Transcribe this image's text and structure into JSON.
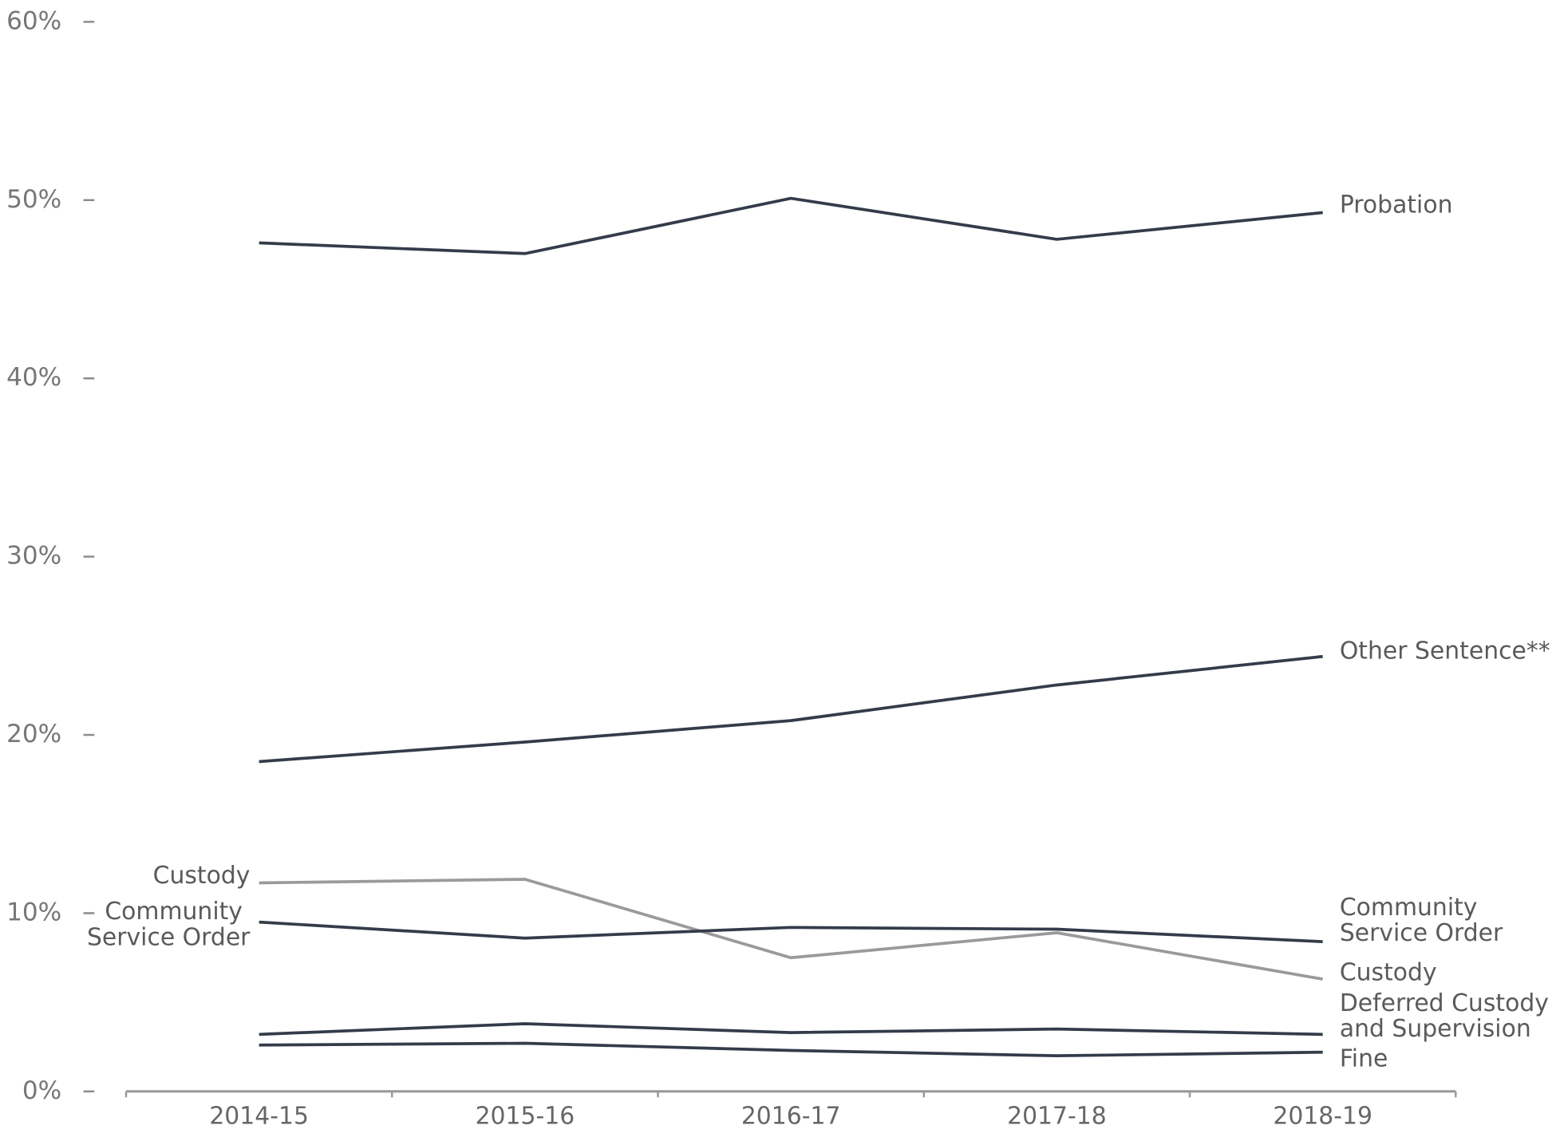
{
  "chart_data": {
    "type": "line",
    "categories": [
      "2014-15",
      "2015-16",
      "2016-17",
      "2017-18",
      "2018-19"
    ],
    "series": [
      {
        "name": "Probation",
        "color": "#343c4a",
        "values": [
          47.6,
          47.0,
          50.1,
          47.8,
          49.3
        ]
      },
      {
        "name": "Other Sentence**",
        "color": "#343c4a",
        "values": [
          18.5,
          19.6,
          20.8,
          22.8,
          24.4
        ]
      },
      {
        "name": "Custody",
        "color": "#9a9a9a",
        "values": [
          11.7,
          11.9,
          7.5,
          8.9,
          6.3
        ]
      },
      {
        "name": "Community Service Order",
        "color": "#343c4a",
        "values": [
          9.5,
          8.6,
          9.2,
          9.1,
          8.4
        ]
      },
      {
        "name": "Deferred Custody and Supervision",
        "color": "#343c4a",
        "values": [
          3.2,
          3.8,
          3.3,
          3.5,
          3.2
        ]
      },
      {
        "name": "Fine",
        "color": "#343c4a",
        "values": [
          2.6,
          2.7,
          2.3,
          2.0,
          2.2
        ]
      }
    ],
    "ylim": [
      0,
      60
    ],
    "yticks": [
      {
        "value": 0,
        "label": "0%"
      },
      {
        "value": 10,
        "label": "10%"
      },
      {
        "value": 20,
        "label": "20%"
      },
      {
        "value": 30,
        "label": "30%"
      },
      {
        "value": 40,
        "label": "40%"
      },
      {
        "value": 50,
        "label": "50%"
      },
      {
        "value": 60,
        "label": "60%"
      }
    ]
  }
}
